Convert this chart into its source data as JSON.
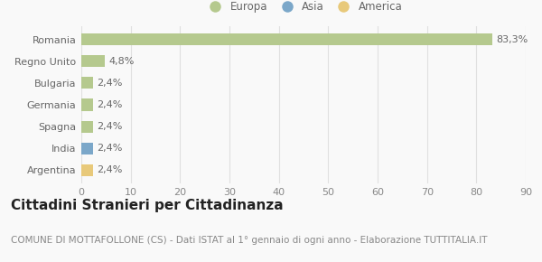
{
  "categories": [
    "Argentina",
    "India",
    "Spagna",
    "Germania",
    "Bulgaria",
    "Regno Unito",
    "Romania"
  ],
  "values": [
    2.4,
    2.4,
    2.4,
    2.4,
    2.4,
    4.8,
    83.3
  ],
  "bar_colors": [
    "#e8c97a",
    "#7ba7c9",
    "#b5c98e",
    "#b5c98e",
    "#b5c98e",
    "#b5c98e",
    "#b5c98e"
  ],
  "bar_labels": [
    "2,4%",
    "2,4%",
    "2,4%",
    "2,4%",
    "2,4%",
    "4,8%",
    "83,3%"
  ],
  "legend_labels": [
    "Europa",
    "Asia",
    "America"
  ],
  "legend_colors": [
    "#b5c98e",
    "#7ba7c9",
    "#e8c97a"
  ],
  "xlim": [
    0,
    90
  ],
  "xticks": [
    0,
    10,
    20,
    30,
    40,
    50,
    60,
    70,
    80,
    90
  ],
  "title": "Cittadini Stranieri per Cittadinanza",
  "subtitle": "COMUNE DI MOTTAFOLLONE (CS) - Dati ISTAT al 1° gennaio di ogni anno - Elaborazione TUTTITALIA.IT",
  "background_color": "#f9f9f9",
  "grid_color": "#e0e0e0",
  "bar_height": 0.55,
  "title_fontsize": 11,
  "subtitle_fontsize": 7.5,
  "label_fontsize": 8,
  "tick_fontsize": 8,
  "legend_fontsize": 8.5
}
